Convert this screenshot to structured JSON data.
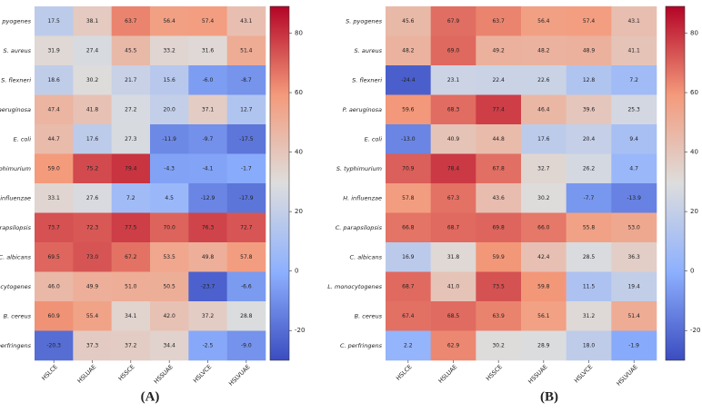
{
  "chart_data": [
    {
      "type": "heatmap",
      "label": "(A)",
      "x_categories": [
        "HSLCE",
        "HSLUAE",
        "HSSCE",
        "HSSUAE",
        "HSLVCE",
        "HSLVUAE"
      ],
      "y_categories": [
        "S. pyogenes",
        "S. aureus",
        "S. flexneri",
        "P. aeruginosa",
        "E. coli",
        "S. typhimurium",
        "H. influenzae",
        "C. parapsilopsis",
        "C. albicans",
        "L. monocytogenes",
        "B. cereus",
        "C. perfringens"
      ],
      "values": [
        [
          17.5,
          38.1,
          63.7,
          56.4,
          57.4,
          43.1
        ],
        [
          31.9,
          27.4,
          45.5,
          33.2,
          31.6,
          51.4
        ],
        [
          18.6,
          30.2,
          21.7,
          15.6,
          -6.0,
          -8.7
        ],
        [
          47.4,
          41.8,
          27.2,
          20.0,
          37.1,
          12.7
        ],
        [
          44.7,
          17.6,
          27.3,
          -11.9,
          -9.7,
          -17.5
        ],
        [
          59.0,
          75.2,
          79.4,
          -4.3,
          -4.1,
          -1.7
        ],
        [
          33.1,
          27.6,
          7.2,
          4.5,
          -12.9,
          -17.9
        ],
        [
          73.7,
          72.3,
          77.5,
          70.0,
          76.3,
          72.7
        ],
        [
          69.5,
          73.0,
          67.2,
          53.5,
          49.8,
          57.8
        ],
        [
          46.0,
          49.9,
          51.0,
          50.5,
          -23.7,
          -6.6
        ],
        [
          60.9,
          55.4,
          34.1,
          42.0,
          37.2,
          28.8
        ],
        [
          -20.3,
          37.3,
          37.2,
          34.4,
          -2.5,
          -9.0
        ]
      ],
      "value_labels": [
        [
          "17.5",
          "38.1",
          "63.7",
          "56.4",
          "57.4",
          "43.1"
        ],
        [
          "31.9",
          "27.4",
          "45.5",
          "33.2",
          "31.6",
          "51.4"
        ],
        [
          "18.6",
          "30.2",
          "21.7",
          "15.6",
          "-6.0",
          "-8.7"
        ],
        [
          "47.4",
          "41.8",
          "27.2",
          "20.0",
          "37.1",
          "12.7"
        ],
        [
          "44.7",
          "17.6",
          "27.3",
          "-11.9",
          "-9.7",
          "-17.5"
        ],
        [
          "59.0",
          "75.2",
          "79.4",
          "-4.3",
          "-4.1",
          "-1.7"
        ],
        [
          "33.1",
          "27.6",
          "7.2",
          "4.5",
          "-12.9",
          "-17.9"
        ],
        [
          "73.7",
          "72.3",
          "77.5",
          "70.0",
          "76.3",
          "72.7"
        ],
        [
          "69.5",
          "73.0",
          "67.2",
          "53.5",
          "49.8",
          "57.8"
        ],
        [
          "46.0",
          "49.9",
          "51.0",
          "50.5",
          "-23.7",
          "-6.6"
        ],
        [
          "60.9",
          "55.4",
          "34.1",
          "42.0",
          "37.2",
          "28.8"
        ],
        [
          "-20.3",
          "37.3",
          "37.2",
          "34.4",
          "-2.5",
          "-9.0"
        ]
      ],
      "colormap": "coolwarm",
      "clim": [
        -30,
        89
      ],
      "cticks": [
        -20,
        0,
        20,
        40,
        60,
        80
      ]
    },
    {
      "type": "heatmap",
      "label": "(B)",
      "x_categories": [
        "HSLCE",
        "HSLUAE",
        "HSSCE",
        "HSSUAE",
        "HSLVCE",
        "HSLVUAE"
      ],
      "y_categories": [
        "S. pyogenes",
        "S. aureus",
        "S. flexneri",
        "P. aeruginosa",
        "E. coli",
        "S. typhimurium",
        "H. influenzae",
        "C. parapsilopsis",
        "C. albicans",
        "L. monocytogenes",
        "B. cereus",
        "C. perfringens"
      ],
      "values": [
        [
          45.6,
          67.9,
          63.7,
          56.4,
          57.4,
          43.1
        ],
        [
          48.2,
          69.0,
          49.2,
          48.2,
          48.9,
          41.1
        ],
        [
          -24.4,
          23.1,
          22.4,
          22.6,
          12.8,
          7.2
        ],
        [
          59.6,
          68.3,
          77.4,
          46.4,
          39.6,
          25.3
        ],
        [
          -13.0,
          40.9,
          44.8,
          17.6,
          20.4,
          9.4
        ],
        [
          70.9,
          78.4,
          67.8,
          32.7,
          26.2,
          4.7
        ],
        [
          57.8,
          67.3,
          43.6,
          30.2,
          -7.7,
          -13.9
        ],
        [
          66.8,
          68.7,
          69.8,
          66.0,
          55.8,
          53.0
        ],
        [
          16.9,
          31.8,
          59.9,
          42.4,
          28.5,
          36.3
        ],
        [
          68.7,
          41.0,
          73.5,
          59.8,
          11.5,
          19.4
        ],
        [
          67.4,
          68.5,
          63.9,
          56.1,
          31.2,
          51.4
        ],
        [
          2.2,
          62.9,
          30.2,
          28.9,
          18.0,
          -1.9
        ]
      ],
      "value_labels": [
        [
          "45.6",
          "67.9",
          "63.7",
          "56.4",
          "57.4",
          "43.1"
        ],
        [
          "48.2",
          "69.0",
          "49.2",
          "48.2",
          "48.9",
          "41.1"
        ],
        [
          "-24.4",
          "23.1",
          "22.4",
          "22.6",
          "12.8",
          "7.2"
        ],
        [
          "59.6",
          "68.3",
          "77.4",
          "46.4",
          "39.6",
          "25.3"
        ],
        [
          "-13.0",
          "40.9",
          "44.8",
          "17.6",
          "20.4",
          "9.4"
        ],
        [
          "70.9",
          "78.4",
          "67.8",
          "32.7",
          "26.2",
          "4.7"
        ],
        [
          "57.8",
          "67.3",
          "43.6",
          "30.2",
          "-7.7",
          "-13.9"
        ],
        [
          "66.8",
          "68.7",
          "69.8",
          "66.0",
          "55.8",
          "53.0"
        ],
        [
          "16.9",
          "31.8",
          "59.9",
          "42.4",
          "28.5",
          "36.3"
        ],
        [
          "68.7",
          "41.0",
          "73.5",
          "59.8",
          "11.5",
          "19.4"
        ],
        [
          "67.4",
          "68.5",
          "63.9",
          "56.1",
          "31.2",
          "51.4"
        ],
        [
          "2.2",
          "62.9",
          "30.2",
          "28.9",
          "18.0",
          "-1.9"
        ]
      ],
      "colormap": "coolwarm",
      "clim": [
        -30,
        89
      ],
      "cticks": [
        -20,
        0,
        20,
        40,
        60,
        80
      ]
    }
  ]
}
